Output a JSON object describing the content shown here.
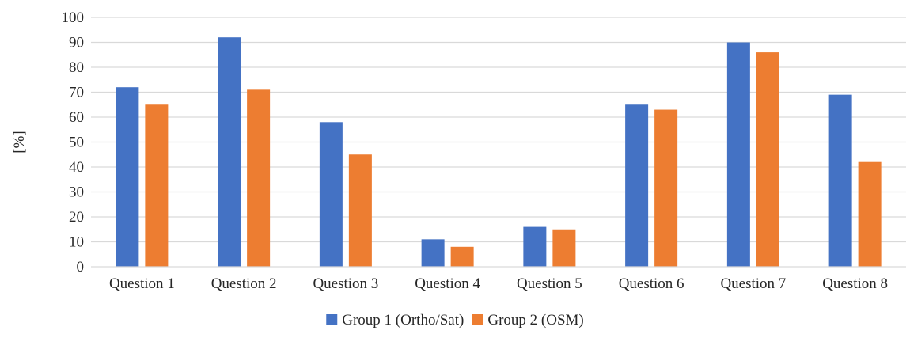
{
  "chart_data": {
    "type": "bar",
    "categories": [
      "Question 1",
      "Question 2",
      "Question 3",
      "Question 4",
      "Question 5",
      "Question 6",
      "Question 7",
      "Question 8"
    ],
    "series": [
      {
        "name": "Group 1 (Ortho/Sat)",
        "color": "#4472C4",
        "values": [
          72,
          92,
          58,
          11,
          16,
          65,
          90,
          69
        ]
      },
      {
        "name": "Group 2 (OSM)",
        "color": "#ED7D31",
        "values": [
          65,
          71,
          45,
          8,
          15,
          63,
          86,
          42
        ]
      }
    ],
    "ylabel": "[%]",
    "ylim": [
      0,
      100
    ],
    "yticks": [
      0,
      10,
      20,
      30,
      40,
      50,
      60,
      70,
      80,
      90,
      100
    ],
    "grid": true,
    "legend_position": "bottom"
  }
}
